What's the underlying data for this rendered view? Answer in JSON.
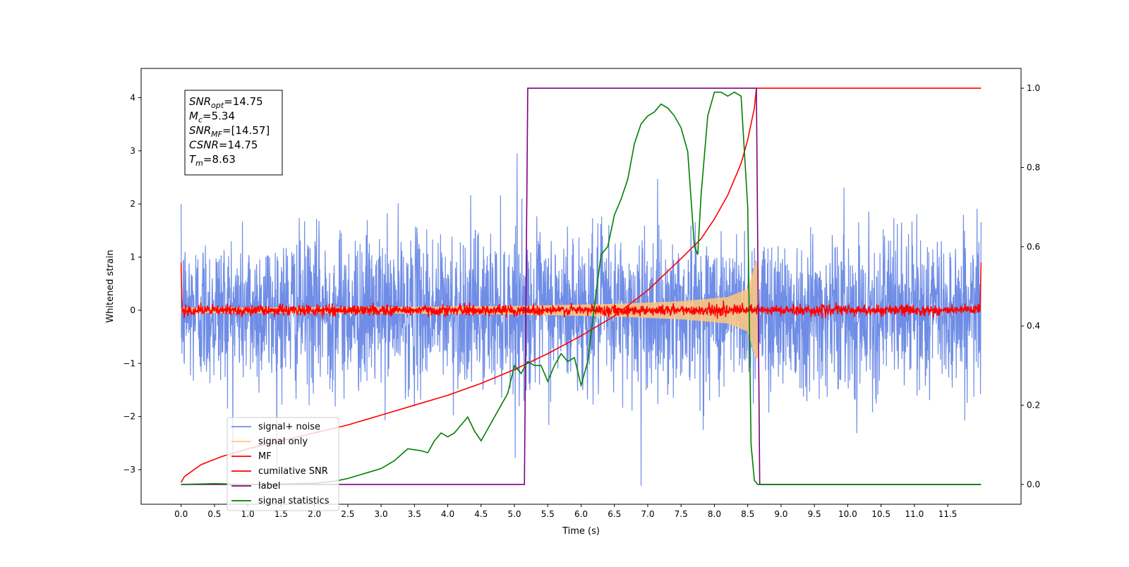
{
  "chart_data": {
    "type": "line",
    "xlabel": "Time (s)",
    "ylabel": "Whitened strain",
    "y2label": "",
    "xlim": [
      -0.6,
      12.6
    ],
    "ylim": [
      -3.65,
      4.55
    ],
    "y2lim": [
      -0.05,
      1.05
    ],
    "x_ticks": [
      "0.0",
      "0.5",
      "1.0",
      "1.5",
      "2.0",
      "2.5",
      "3.0",
      "3.5",
      "4.0",
      "4.5",
      "5.0",
      "5.5",
      "6.0",
      "6.5",
      "7.0",
      "7.5",
      "8.0",
      "8.5",
      "9.0",
      "9.5",
      "10.0",
      "10.5",
      "11.0",
      "11.5"
    ],
    "y_ticks": [
      "4",
      "3",
      "2",
      "1",
      "0",
      "−1",
      "−2",
      "−3"
    ],
    "y2_ticks": [
      "1.0",
      "0.8",
      "0.6",
      "0.4",
      "0.2",
      "0.0"
    ],
    "grid": false,
    "legend_position": "lower-left",
    "annotation": {
      "lines": [
        {
          "sym": "SNR",
          "sub": "opt",
          "text": "=14.75"
        },
        {
          "sym": "M",
          "sub": "c",
          "text": "=5.34"
        },
        {
          "sym": "SNR",
          "sub": "MF",
          "text": "=[14.57]"
        },
        {
          "sym": "CSNR",
          "sub": "",
          "text": "=14.75"
        },
        {
          "sym": "T",
          "sub": "m",
          "text": "=8.63"
        }
      ]
    },
    "series": [
      {
        "name": "signal+ noise",
        "color": "#6f8de6",
        "axis": "left",
        "kind": "noise",
        "t_range": [
          0.0,
          12.0
        ],
        "std": 0.72,
        "peak_max": 2.95,
        "peak_min": -3.3
      },
      {
        "name": "signal only",
        "color": "#ffc87c",
        "axis": "left",
        "kind": "chirp",
        "t_range": [
          0.0,
          8.65
        ],
        "envelope": [
          [
            0.0,
            0.05
          ],
          [
            3.0,
            0.06
          ],
          [
            5.0,
            0.08
          ],
          [
            6.5,
            0.12
          ],
          [
            7.5,
            0.17
          ],
          [
            8.2,
            0.25
          ],
          [
            8.5,
            0.4
          ],
          [
            8.62,
            0.9
          ]
        ]
      },
      {
        "name": "MF",
        "color": "#ff0000",
        "axis": "left",
        "kind": "mf_noise",
        "t_range": [
          0.0,
          12.0
        ],
        "std": 0.05
      },
      {
        "name": "cumilative SNR",
        "color": "#ff0000",
        "axis": "right",
        "kind": "curve",
        "points": [
          [
            0.0,
            0.005
          ],
          [
            0.05,
            0.02
          ],
          [
            0.3,
            0.05
          ],
          [
            0.6,
            0.07
          ],
          [
            1.0,
            0.09
          ],
          [
            1.5,
            0.11
          ],
          [
            2.0,
            0.13
          ],
          [
            2.5,
            0.15
          ],
          [
            3.0,
            0.175
          ],
          [
            3.5,
            0.2
          ],
          [
            4.0,
            0.225
          ],
          [
            4.5,
            0.255
          ],
          [
            5.0,
            0.29
          ],
          [
            5.5,
            0.33
          ],
          [
            6.0,
            0.375
          ],
          [
            6.5,
            0.425
          ],
          [
            7.0,
            0.49
          ],
          [
            7.5,
            0.57
          ],
          [
            7.8,
            0.62
          ],
          [
            8.0,
            0.67
          ],
          [
            8.2,
            0.73
          ],
          [
            8.4,
            0.81
          ],
          [
            8.5,
            0.87
          ],
          [
            8.6,
            0.95
          ],
          [
            8.63,
            1.0
          ],
          [
            12.0,
            1.0
          ]
        ]
      },
      {
        "name": "label",
        "color": "#800080",
        "axis": "right",
        "kind": "curve",
        "points": [
          [
            0.0,
            0.0
          ],
          [
            5.15,
            0.0
          ],
          [
            5.2,
            1.0
          ],
          [
            8.63,
            1.0
          ],
          [
            8.68,
            0.0
          ],
          [
            12.0,
            0.0
          ]
        ]
      },
      {
        "name": "signal statistics",
        "color": "#008000",
        "axis": "right",
        "kind": "curve",
        "points": [
          [
            0.0,
            0.0
          ],
          [
            0.5,
            0.002
          ],
          [
            1.0,
            0.0
          ],
          [
            1.5,
            0.001
          ],
          [
            2.0,
            0.003
          ],
          [
            2.3,
            0.008
          ],
          [
            2.5,
            0.015
          ],
          [
            2.8,
            0.03
          ],
          [
            3.0,
            0.04
          ],
          [
            3.2,
            0.06
          ],
          [
            3.4,
            0.09
          ],
          [
            3.6,
            0.085
          ],
          [
            3.7,
            0.08
          ],
          [
            3.8,
            0.11
          ],
          [
            3.9,
            0.13
          ],
          [
            4.0,
            0.12
          ],
          [
            4.1,
            0.13
          ],
          [
            4.2,
            0.15
          ],
          [
            4.3,
            0.17
          ],
          [
            4.4,
            0.135
          ],
          [
            4.5,
            0.11
          ],
          [
            4.6,
            0.14
          ],
          [
            4.7,
            0.17
          ],
          [
            4.8,
            0.2
          ],
          [
            4.9,
            0.23
          ],
          [
            5.0,
            0.3
          ],
          [
            5.1,
            0.28
          ],
          [
            5.2,
            0.31
          ],
          [
            5.3,
            0.3
          ],
          [
            5.4,
            0.3
          ],
          [
            5.5,
            0.26
          ],
          [
            5.6,
            0.3
          ],
          [
            5.7,
            0.33
          ],
          [
            5.8,
            0.31
          ],
          [
            5.9,
            0.32
          ],
          [
            6.0,
            0.25
          ],
          [
            6.1,
            0.31
          ],
          [
            6.2,
            0.45
          ],
          [
            6.3,
            0.58
          ],
          [
            6.4,
            0.6
          ],
          [
            6.5,
            0.68
          ],
          [
            6.6,
            0.72
          ],
          [
            6.7,
            0.77
          ],
          [
            6.8,
            0.86
          ],
          [
            6.9,
            0.91
          ],
          [
            7.0,
            0.93
          ],
          [
            7.1,
            0.94
          ],
          [
            7.2,
            0.96
          ],
          [
            7.3,
            0.95
          ],
          [
            7.4,
            0.93
          ],
          [
            7.5,
            0.9
          ],
          [
            7.6,
            0.84
          ],
          [
            7.7,
            0.6
          ],
          [
            7.75,
            0.58
          ],
          [
            7.8,
            0.73
          ],
          [
            7.9,
            0.93
          ],
          [
            8.0,
            0.99
          ],
          [
            8.1,
            0.99
          ],
          [
            8.2,
            0.98
          ],
          [
            8.3,
            0.99
          ],
          [
            8.4,
            0.98
          ],
          [
            8.5,
            0.7
          ],
          [
            8.55,
            0.1
          ],
          [
            8.6,
            0.01
          ],
          [
            8.65,
            0.0
          ],
          [
            12.0,
            0.0
          ]
        ]
      }
    ]
  }
}
